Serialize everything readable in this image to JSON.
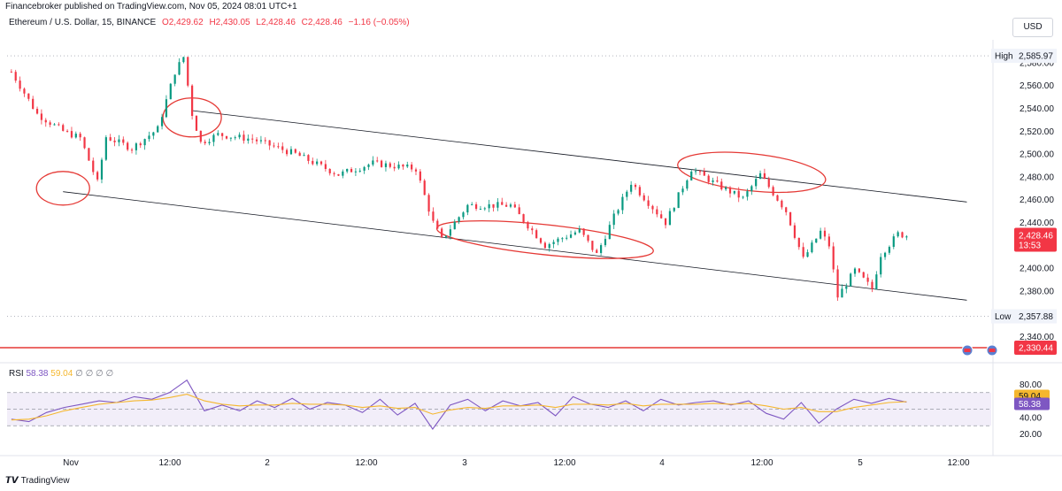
{
  "header": {
    "published_by": "Financebroker published on TradingView.com, Nov 05, 2024 08:01 UTC+1",
    "currency": "USD"
  },
  "legend": {
    "symbol": "Ethereum / U.S. Dollar, 15, BINANCE",
    "open": "O2,429.62",
    "high": "H2,430.05",
    "low": "L2,428.46",
    "close": "C2,428.46",
    "change": "−1.16 (−0.05%)"
  },
  "rsi_legend": {
    "name": "RSI",
    "rsi": "58.38",
    "ma": "59.04",
    "extras": "∅ ∅ ∅ ∅"
  },
  "footer": {
    "brand": "TradingView"
  },
  "colors": {
    "up": "#089981",
    "down": "#f23645",
    "rsi": "#7e57c2",
    "rsi_ma": "#f5b72e",
    "annotation": "#e53935",
    "channel": "#131722"
  },
  "chart_data": [
    {
      "type": "candlestick",
      "title": "Ethereum / U.S. Dollar, 15, BINANCE",
      "ylim": [
        2325,
        2600
      ],
      "y_ticks": [
        "2,580.00",
        "2,560.00",
        "2,540.00",
        "2,520.00",
        "2,500.00",
        "2,480.00",
        "2,460.00",
        "2,440.00",
        "2,400.00",
        "2,380.00",
        "2,340.00"
      ],
      "x_ticks": [
        "Nov",
        "12:00",
        "2",
        "12:00",
        "3",
        "12:00",
        "4",
        "12:00",
        "5",
        "12:00"
      ],
      "ohlc_path": [
        [
          "Nov 1 00:00",
          2572
        ],
        [
          "Nov 1 03:00",
          2535
        ],
        [
          "Nov 1 06:00",
          2520
        ],
        [
          "Nov 1 08:00",
          2514
        ],
        [
          "Nov 1 10:00",
          2475
        ],
        [
          "Nov 1 11:00",
          2515
        ],
        [
          "Nov 1 14:00",
          2505
        ],
        [
          "Nov 1 17:00",
          2522
        ],
        [
          "Nov 1 19:00",
          2572
        ],
        [
          "Nov 1 20:00",
          2585
        ],
        [
          "Nov 1 21:00",
          2535
        ],
        [
          "Nov 1 22:00",
          2510
        ],
        [
          "Nov 2 00:00",
          2517
        ],
        [
          "Nov 2 04:00",
          2513
        ],
        [
          "Nov 2 09:00",
          2500
        ],
        [
          "Nov 2 14:00",
          2482
        ],
        [
          "Nov 2 18:00",
          2492
        ],
        [
          "Nov 2 23:00",
          2487
        ],
        [
          "Nov 3 01:00",
          2440
        ],
        [
          "Nov 3 02:00",
          2425
        ],
        [
          "Nov 3 05:00",
          2455
        ],
        [
          "Nov 3 10:00",
          2455
        ],
        [
          "Nov 3 14:00",
          2420
        ],
        [
          "Nov 3 18:00",
          2433
        ],
        [
          "Nov 3 20:00",
          2412
        ],
        [
          "Nov 3 22:00",
          2445
        ],
        [
          "Nov 4 00:00",
          2475
        ],
        [
          "Nov 4 04:00",
          2440
        ],
        [
          "Nov 4 07:00",
          2487
        ],
        [
          "Nov 4 10:00",
          2473
        ],
        [
          "Nov 4 13:00",
          2461
        ],
        [
          "Nov 4 15:00",
          2482
        ],
        [
          "Nov 4 18:00",
          2450
        ],
        [
          "Nov 4 20:00",
          2408
        ],
        [
          "Nov 4 22:00",
          2432
        ],
        [
          "Nov 4 23:00",
          2420
        ],
        [
          "Nov 5 00:00",
          2375
        ],
        [
          "Nov 5 02:00",
          2398
        ],
        [
          "Nov 5 04:00",
          2382
        ],
        [
          "Nov 5 05:00",
          2412
        ],
        [
          "Nov 5 07:00",
          2430
        ],
        [
          "Nov 5 08:00",
          2428.46
        ]
      ],
      "last_price": "2,428.46",
      "countdown": "13:53",
      "high_label": "High",
      "high_value": "2,585.97",
      "high": 2585.97,
      "low_label": "Low",
      "low_value": "2,357.88",
      "low": 2357.88,
      "level_value": "2,330.44",
      "level": 2330.44,
      "channel": {
        "upper": [
          [
            "Nov 1 21:00",
            2538
          ],
          [
            "Nov 5 15:00",
            2458
          ]
        ],
        "lower": [
          [
            "Nov 1 06:00",
            2467
          ],
          [
            "Nov 5 15:00",
            2372
          ]
        ]
      },
      "annotations": [
        {
          "center": [
            "Nov 1 06:00",
            2470
          ],
          "shape": "ellipse"
        },
        {
          "center": [
            "Nov 1 21:00",
            2532
          ],
          "shape": "ellipse"
        },
        {
          "center": [
            "Nov 3 14:00",
            2425
          ],
          "shape": "ellipse"
        },
        {
          "center": [
            "Nov 4 14:00",
            2484
          ],
          "shape": "ellipse"
        }
      ]
    },
    {
      "type": "line",
      "title": "RSI",
      "ylim": [
        10,
        90
      ],
      "y_ticks": [
        "80.00",
        "40.00",
        "20.00"
      ],
      "levels": [
        70,
        50,
        30
      ],
      "series": [
        {
          "name": "RSI",
          "values": [
            38,
            35,
            46,
            52,
            56,
            60,
            58,
            65,
            62,
            70,
            85,
            48,
            55,
            48,
            60,
            52,
            63,
            50,
            58,
            55,
            46,
            62,
            43,
            57,
            26,
            55,
            62,
            48,
            60,
            54,
            58,
            42,
            65,
            56,
            52,
            60,
            48,
            62,
            55,
            58,
            60,
            55,
            60,
            45,
            38,
            58,
            33,
            50,
            62,
            57,
            63,
            58.38
          ]
        },
        {
          "name": "MA",
          "values": [
            37,
            38,
            42,
            48,
            52,
            56,
            58,
            60,
            61,
            64,
            68,
            60,
            56,
            54,
            55,
            55,
            57,
            56,
            56,
            55,
            52,
            54,
            51,
            52,
            44,
            49,
            52,
            51,
            54,
            54,
            55,
            52,
            56,
            56,
            55,
            57,
            54,
            56,
            56,
            56,
            57,
            56,
            57,
            54,
            50,
            52,
            47,
            47,
            52,
            55,
            58,
            59.04
          ]
        }
      ],
      "rsi_value": "58.38",
      "ma_value": "59.04"
    }
  ]
}
